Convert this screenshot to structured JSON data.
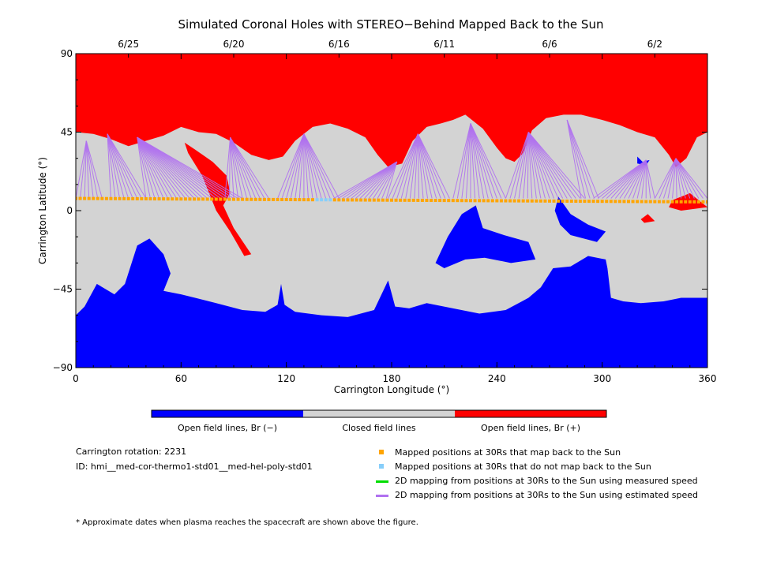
{
  "chart_data": {
    "type": "map",
    "title": "Simulated Coronal Holes with STEREO−Behind Mapped Back to the Sun",
    "xlabel": "Carrington Longitude (°)",
    "ylabel": "Carrington Latitude (°)",
    "xlim": [
      0,
      360
    ],
    "ylim": [
      -90,
      90
    ],
    "xticks": [
      "0",
      "60",
      "120",
      "180",
      "240",
      "300",
      "360"
    ],
    "yticks": [
      "90",
      "45",
      "0",
      "−45",
      "−90"
    ],
    "top_dates": [
      {
        "label": "6/25",
        "lon": 30
      },
      {
        "label": "6/20",
        "lon": 90
      },
      {
        "label": "6/16",
        "lon": 150
      },
      {
        "label": "6/11",
        "lon": 210
      },
      {
        "label": "6/6",
        "lon": 270
      },
      {
        "label": "6/2",
        "lon": 330
      }
    ],
    "colorbar": [
      {
        "label": "Open field lines, Br (−)",
        "color": "#0000ff"
      },
      {
        "label": "Closed field lines",
        "color": "#d3d3d3"
      },
      {
        "label": "Open field lines, Br (+)",
        "color": "#ff0000"
      }
    ],
    "legend": [
      {
        "label": "Mapped positions at 30Rs that map back to the Sun",
        "color": "#ffa500",
        "kind": "square"
      },
      {
        "label": "Mapped positions at 30Rs that do not map back to the Sun",
        "color": "#87cefa",
        "kind": "square"
      },
      {
        "label": "2D mapping from positions at 30Rs to the Sun using measured speed",
        "color": "#00dd00",
        "kind": "line"
      },
      {
        "label": "2D mapping from positions at 30Rs to the Sun using estimated speed",
        "color": "#b070f0",
        "kind": "line"
      }
    ],
    "info": {
      "rotation": "Carrington rotation: 2231",
      "id": "ID: hmi__med-cor-thermo1-std01__med-hel-poly-std01"
    },
    "footnote": "* Approximate dates when plasma reaches the spacecraft are shown above the figure.",
    "regions": {
      "positive_polar_boundary": [
        [
          0,
          45
        ],
        [
          10,
          44
        ],
        [
          20,
          41
        ],
        [
          30,
          37
        ],
        [
          40,
          40
        ],
        [
          50,
          43
        ],
        [
          60,
          48
        ],
        [
          70,
          45
        ],
        [
          80,
          44
        ],
        [
          90,
          39
        ],
        [
          100,
          32
        ],
        [
          110,
          29
        ],
        [
          118,
          31
        ],
        [
          125,
          40
        ],
        [
          135,
          48
        ],
        [
          145,
          50
        ],
        [
          155,
          47
        ],
        [
          165,
          42
        ],
        [
          172,
          32
        ],
        [
          178,
          25
        ],
        [
          186,
          27
        ],
        [
          192,
          40
        ],
        [
          200,
          48
        ],
        [
          208,
          50
        ],
        [
          215,
          52
        ],
        [
          222,
          55
        ],
        [
          232,
          47
        ],
        [
          240,
          36
        ],
        [
          245,
          30
        ],
        [
          250,
          28
        ],
        [
          255,
          33
        ],
        [
          260,
          46
        ],
        [
          268,
          53
        ],
        [
          278,
          55
        ],
        [
          288,
          55
        ],
        [
          300,
          52
        ],
        [
          310,
          49
        ],
        [
          320,
          45
        ],
        [
          330,
          42
        ],
        [
          338,
          32
        ],
        [
          342,
          25
        ],
        [
          348,
          30
        ],
        [
          354,
          42
        ],
        [
          360,
          45
        ]
      ],
      "negative_polar_boundary": [
        [
          0,
          -60
        ],
        [
          5,
          -55
        ],
        [
          12,
          -42
        ],
        [
          22,
          -48
        ],
        [
          28,
          -42
        ],
        [
          35,
          -20
        ],
        [
          42,
          -16
        ],
        [
          50,
          -25
        ],
        [
          54,
          -36
        ],
        [
          50,
          -46
        ],
        [
          60,
          -48
        ],
        [
          68,
          -50
        ],
        [
          80,
          -53
        ],
        [
          95,
          -57
        ],
        [
          108,
          -58
        ],
        [
          115,
          -54
        ],
        [
          117,
          -42
        ],
        [
          119,
          -54
        ],
        [
          125,
          -58
        ],
        [
          140,
          -60
        ],
        [
          155,
          -61
        ],
        [
          170,
          -57
        ],
        [
          178,
          -40
        ],
        [
          182,
          -55
        ],
        [
          190,
          -56
        ],
        [
          200,
          -53
        ],
        [
          215,
          -56
        ],
        [
          230,
          -59
        ],
        [
          245,
          -57
        ],
        [
          258,
          -50
        ],
        [
          265,
          -44
        ],
        [
          272,
          -33
        ],
        [
          282,
          -32
        ],
        [
          292,
          -26
        ],
        [
          302,
          -28
        ],
        [
          303,
          -33
        ],
        [
          305,
          -50
        ],
        [
          312,
          -52
        ],
        [
          322,
          -53
        ],
        [
          335,
          -52
        ],
        [
          345,
          -50
        ],
        [
          360,
          -50
        ]
      ],
      "negative_holes": [
        [
          [
            205,
            -30
          ],
          [
            212,
            -15
          ],
          [
            220,
            -2
          ],
          [
            228,
            3
          ],
          [
            232,
            -10
          ],
          [
            244,
            -14
          ],
          [
            258,
            -18
          ],
          [
            262,
            -28
          ],
          [
            248,
            -30
          ],
          [
            233,
            -27
          ],
          [
            222,
            -28
          ],
          [
            210,
            -33
          ]
        ],
        [
          [
            275,
            8
          ],
          [
            282,
            -2
          ],
          [
            292,
            -8
          ],
          [
            302,
            -12
          ],
          [
            297,
            -18
          ],
          [
            282,
            -14
          ],
          [
            276,
            -8
          ],
          [
            273,
            0
          ]
        ],
        [
          [
            320,
            31
          ],
          [
            323,
            28
          ],
          [
            327,
            29
          ],
          [
            325,
            26
          ],
          [
            320,
            27
          ]
        ]
      ],
      "positive_holes": [
        [
          [
            62,
            39
          ],
          [
            68,
            35
          ],
          [
            78,
            28
          ],
          [
            86,
            20
          ],
          [
            88,
            10
          ],
          [
            84,
            3
          ],
          [
            90,
            -10
          ],
          [
            100,
            -25
          ],
          [
            96,
            -26
          ],
          [
            88,
            -12
          ],
          [
            80,
            0
          ],
          [
            72,
            20
          ],
          [
            64,
            33
          ]
        ],
        [
          [
            340,
            6
          ],
          [
            350,
            10
          ],
          [
            360,
            2
          ],
          [
            345,
            0
          ],
          [
            338,
            2
          ]
        ],
        [
          [
            322,
            -5
          ],
          [
            326,
            -2
          ],
          [
            330,
            -6
          ],
          [
            324,
            -7
          ]
        ]
      ],
      "mapped_points": {
        "lat": 7,
        "blue_lon_range": [
          137,
          146
        ],
        "step": 2.5
      },
      "mapping_line_targets": [
        {
          "from": [
            0,
            15
          ],
          "to": [
            6,
            40
          ]
        },
        {
          "from": [
            20,
            40
          ],
          "to": [
            18,
            44
          ]
        },
        {
          "from": [
            40,
            95
          ],
          "to": [
            35,
            42
          ]
        },
        {
          "from": [
            85,
            110
          ],
          "to": [
            88,
            42
          ]
        },
        {
          "from": [
            115,
            150
          ],
          "to": [
            130,
            44
          ]
        },
        {
          "from": [
            147,
            178
          ],
          "to": [
            183,
            28
          ]
        },
        {
          "from": [
            178,
            215
          ],
          "to": [
            195,
            44
          ]
        },
        {
          "from": [
            215,
            245
          ],
          "to": [
            225,
            50
          ]
        },
        {
          "from": [
            245,
            290
          ],
          "to": [
            258,
            45
          ]
        },
        {
          "from": [
            288,
            300
          ],
          "to": [
            280,
            52
          ]
        },
        {
          "from": [
            295,
            330
          ],
          "to": [
            325,
            29
          ]
        },
        {
          "from": [
            330,
            360
          ],
          "to": [
            342,
            30
          ]
        }
      ]
    }
  }
}
